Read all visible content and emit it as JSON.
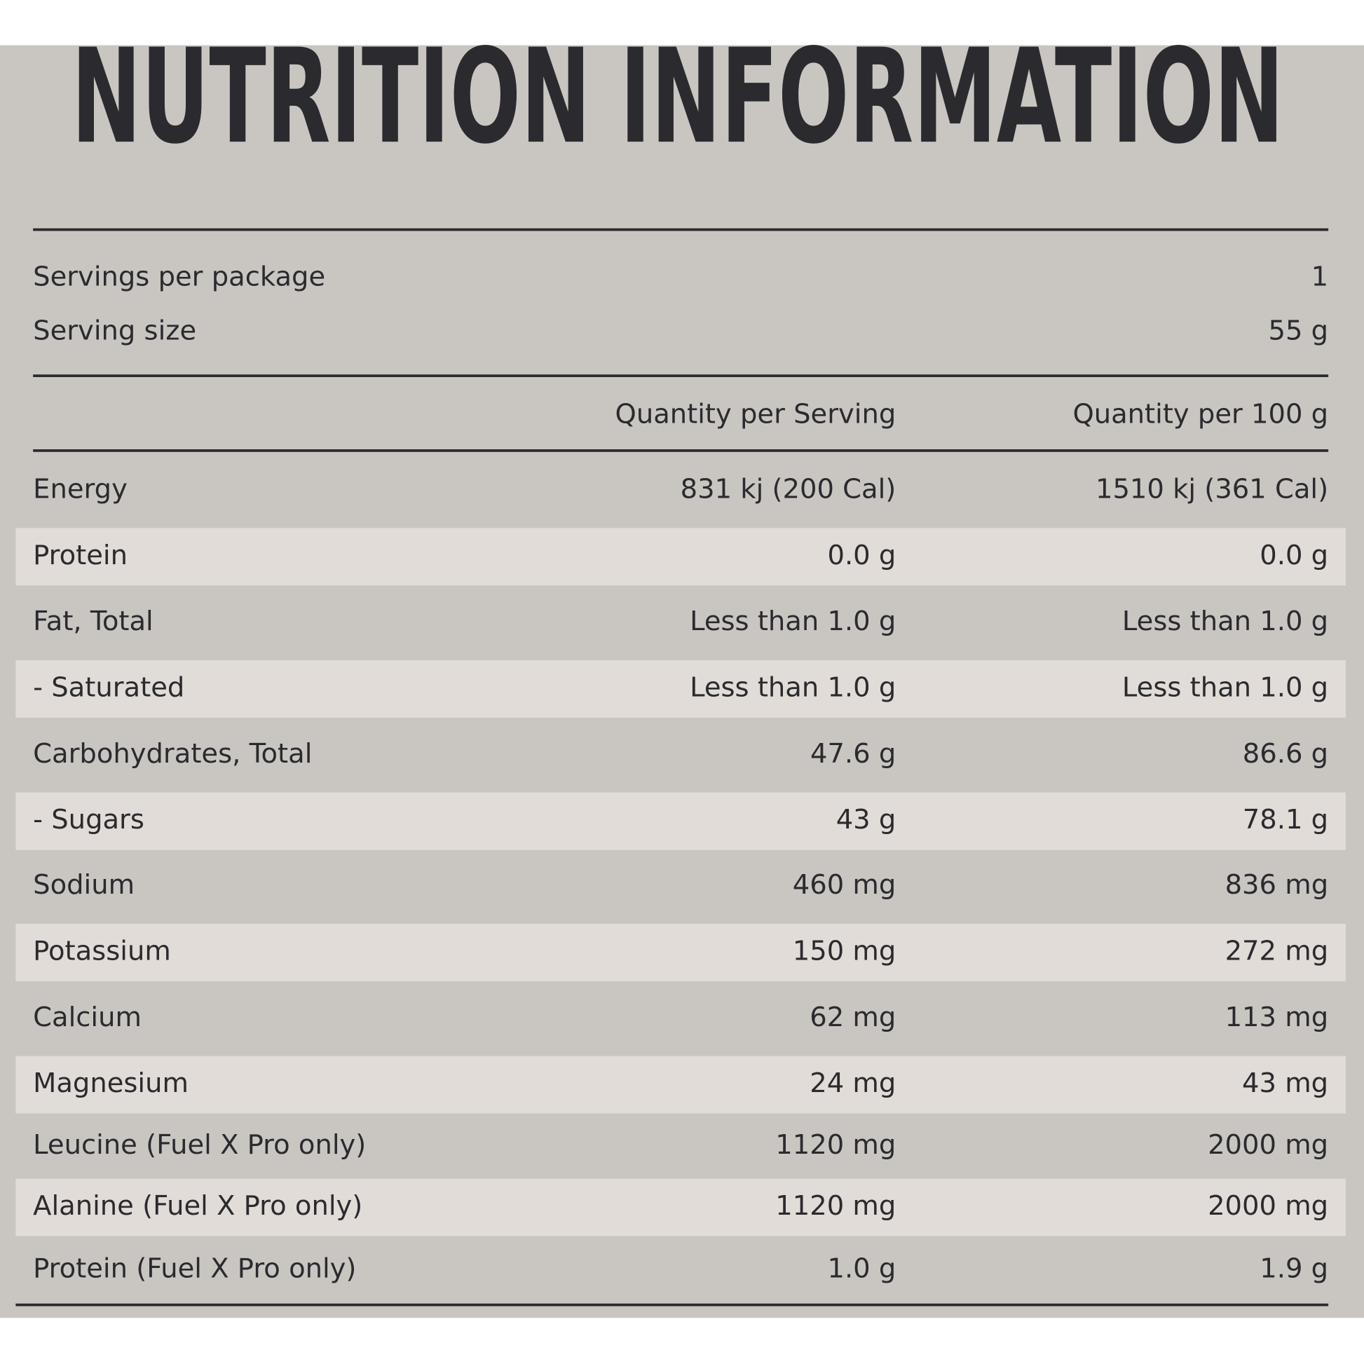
{
  "title": "NUTRITION INFORMATION",
  "servings": [
    {
      "label": "Servings per package",
      "value": "1"
    },
    {
      "label": "Serving size",
      "value": "55 g"
    }
  ],
  "table": {
    "header": [
      "Quantity per Serving",
      "Quantity per 100 g"
    ],
    "rows": [
      [
        "Energy",
        "831 kj (200 Cal)",
        "1510 kj (361 Cal)"
      ],
      [
        "Protein",
        "0.0 g",
        "0.0 g"
      ],
      [
        "Fat, Total",
        "Less than 1.0 g",
        "Less than 1.0 g"
      ],
      [
        "- Saturated",
        "Less than 1.0 g",
        "Less than 1.0 g"
      ],
      [
        "Carbohydrates, Total",
        "47.6 g",
        "86.6 g"
      ],
      [
        "- Sugars",
        "43 g",
        "78.1 g"
      ],
      [
        "Sodium",
        "460 mg",
        "836 mg"
      ],
      [
        "Potassium",
        "150 mg",
        "272 mg"
      ],
      [
        "Calcium",
        "62 mg",
        "113 mg"
      ],
      [
        "Magnesium",
        "24 mg",
        "43 mg"
      ],
      [
        "Leucine (Fuel X Pro only)",
        "1120 mg",
        "2000 mg"
      ],
      [
        "Alanine (Fuel X Pro only)",
        "1120 mg",
        "2000 mg"
      ],
      [
        "Protein (Fuel X Pro only)",
        "1.0 g",
        "1.9 g"
      ]
    ]
  }
}
